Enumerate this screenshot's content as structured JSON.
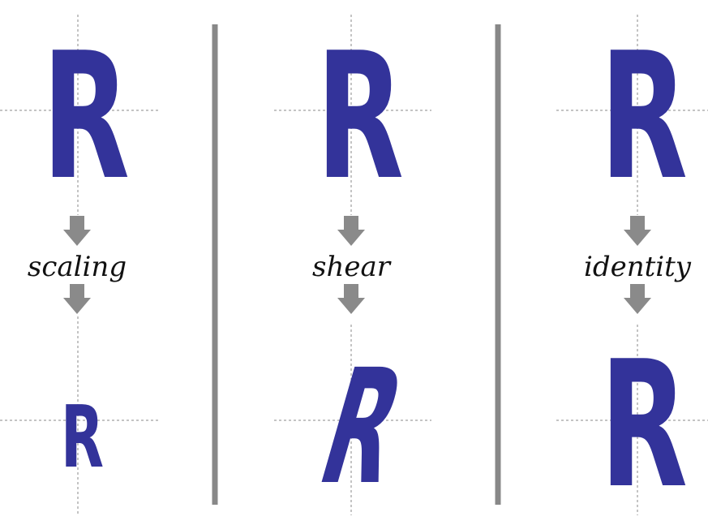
{
  "colors": {
    "letter": "#33339a",
    "guide": "#8a8a8a",
    "divider": "#888888",
    "arrow": "#8a8a8a",
    "label": "#111111"
  },
  "panels": [
    {
      "letter_top": "R",
      "label": "scaling",
      "letter_bottom": "R",
      "transform": "scaling"
    },
    {
      "letter_top": "R",
      "label": "shear",
      "letter_bottom": "R",
      "transform": "shear"
    },
    {
      "letter_top": "R",
      "label": "identity",
      "letter_bottom": "R",
      "transform": "identity"
    }
  ]
}
